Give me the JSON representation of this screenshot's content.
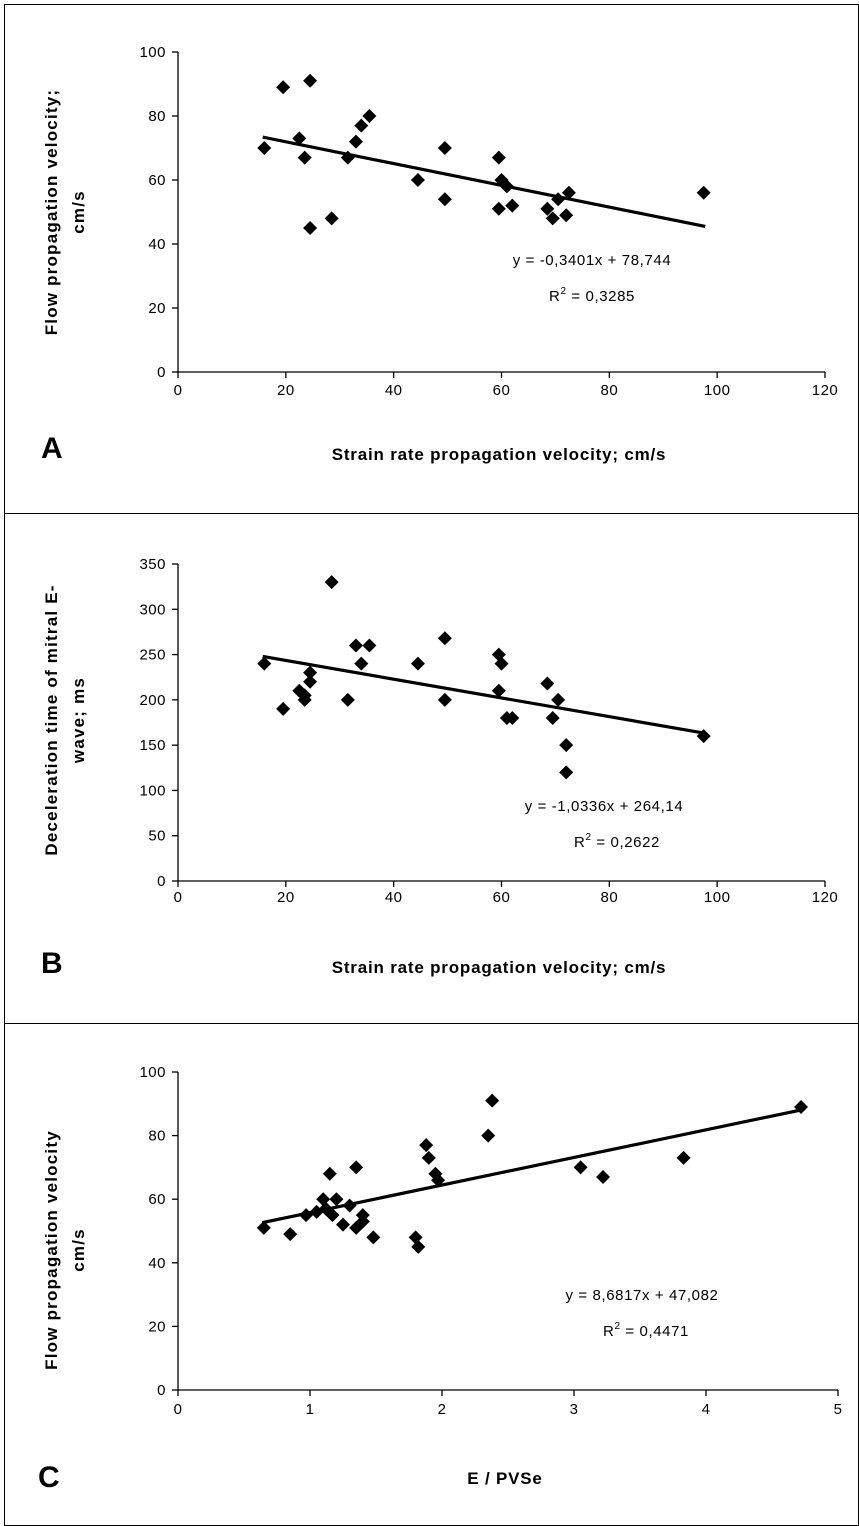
{
  "chart_data": [
    {
      "type": "scatter",
      "panel_label": "A",
      "ylabel_lines": [
        "Flow propagation velocity;",
        "cm/s"
      ],
      "xlabel": "Strain rate propagation velocity; cm/s",
      "xlim": [
        0,
        120
      ],
      "ylim": [
        0,
        100
      ],
      "xticks": [
        "0",
        "20",
        "40",
        "60",
        "80",
        "100",
        "120"
      ],
      "yticks": [
        "0",
        "20",
        "40",
        "60",
        "80",
        "100"
      ],
      "grid": false,
      "trendline": {
        "slope": -0.3401,
        "intercept": 78.744,
        "x_range": [
          16,
          97.5
        ]
      },
      "equation": "y = -0,3401x + 78,744",
      "r2_prefix": "R",
      "r2_sup": "2",
      "r2_value": " = 0,3285",
      "points": [
        {
          "x": 16,
          "y": 70
        },
        {
          "x": 19.5,
          "y": 89
        },
        {
          "x": 22.5,
          "y": 73
        },
        {
          "x": 23.5,
          "y": 67
        },
        {
          "x": 24.5,
          "y": 91
        },
        {
          "x": 24.5,
          "y": 45
        },
        {
          "x": 28.5,
          "y": 48
        },
        {
          "x": 31.5,
          "y": 67
        },
        {
          "x": 33,
          "y": 72
        },
        {
          "x": 34,
          "y": 77
        },
        {
          "x": 35.5,
          "y": 80
        },
        {
          "x": 44.5,
          "y": 60
        },
        {
          "x": 49.5,
          "y": 70
        },
        {
          "x": 49.5,
          "y": 54
        },
        {
          "x": 59.5,
          "y": 67
        },
        {
          "x": 59.5,
          "y": 51
        },
        {
          "x": 60,
          "y": 60
        },
        {
          "x": 61,
          "y": 58
        },
        {
          "x": 62,
          "y": 52
        },
        {
          "x": 68.5,
          "y": 51
        },
        {
          "x": 69.5,
          "y": 48
        },
        {
          "x": 70.5,
          "y": 54
        },
        {
          "x": 72,
          "y": 49
        },
        {
          "x": 72.5,
          "y": 56
        },
        {
          "x": 97.5,
          "y": 56
        }
      ]
    },
    {
      "type": "scatter",
      "panel_label": "B",
      "ylabel_lines": [
        "Deceleration time of mitral E-",
        "wave; ms"
      ],
      "xlabel": "Strain rate propagation velocity; cm/s",
      "xlim": [
        0,
        120
      ],
      "ylim": [
        0,
        350
      ],
      "xticks": [
        "0",
        "20",
        "40",
        "60",
        "80",
        "100",
        "120"
      ],
      "yticks": [
        "0",
        "50",
        "100",
        "150",
        "200",
        "250",
        "300",
        "350"
      ],
      "grid": false,
      "trendline": {
        "slope": -1.0336,
        "intercept": 264.14,
        "x_range": [
          16,
          97.5
        ]
      },
      "equation": "y = -1,0336x + 264,14",
      "r2_prefix": "R",
      "r2_sup": "2",
      "r2_value": " = 0,2622",
      "points": [
        {
          "x": 16,
          "y": 240
        },
        {
          "x": 19.5,
          "y": 190
        },
        {
          "x": 22.5,
          "y": 210
        },
        {
          "x": 23.5,
          "y": 200
        },
        {
          "x": 23.5,
          "y": 205
        },
        {
          "x": 24.5,
          "y": 220
        },
        {
          "x": 24.5,
          "y": 230
        },
        {
          "x": 28.5,
          "y": 330
        },
        {
          "x": 31.5,
          "y": 200
        },
        {
          "x": 33,
          "y": 260
        },
        {
          "x": 34,
          "y": 240
        },
        {
          "x": 35.5,
          "y": 260
        },
        {
          "x": 44.5,
          "y": 240
        },
        {
          "x": 49.5,
          "y": 268
        },
        {
          "x": 49.5,
          "y": 200
        },
        {
          "x": 59.5,
          "y": 250
        },
        {
          "x": 59.5,
          "y": 210
        },
        {
          "x": 60,
          "y": 240
        },
        {
          "x": 61,
          "y": 180
        },
        {
          "x": 62,
          "y": 180
        },
        {
          "x": 68.5,
          "y": 218
        },
        {
          "x": 69.5,
          "y": 180
        },
        {
          "x": 70.5,
          "y": 200
        },
        {
          "x": 72,
          "y": 150
        },
        {
          "x": 72,
          "y": 120
        },
        {
          "x": 97.5,
          "y": 160
        }
      ]
    },
    {
      "type": "scatter",
      "panel_label": "C",
      "ylabel_lines": [
        "Flow propagation velocity",
        "cm/s"
      ],
      "xlabel": "E / PVSe",
      "xlim": [
        0,
        5
      ],
      "ylim": [
        0,
        100
      ],
      "xticks": [
        "0",
        "1",
        "2",
        "3",
        "4",
        "5"
      ],
      "yticks": [
        "0",
        "20",
        "40",
        "60",
        "80",
        "100"
      ],
      "grid": false,
      "trendline": {
        "slope": 8.6817,
        "intercept": 47.082,
        "x_range": [
          0.65,
          4.72
        ]
      },
      "equation": "y = 8,6817x + 47,082",
      "r2_prefix": "R",
      "r2_sup": "2",
      "r2_value": " = 0,4471",
      "points": [
        {
          "x": 0.65,
          "y": 51
        },
        {
          "x": 0.85,
          "y": 49
        },
        {
          "x": 0.97,
          "y": 55
        },
        {
          "x": 1.05,
          "y": 56
        },
        {
          "x": 1.1,
          "y": 60
        },
        {
          "x": 1.12,
          "y": 57
        },
        {
          "x": 1.15,
          "y": 68
        },
        {
          "x": 1.17,
          "y": 55
        },
        {
          "x": 1.2,
          "y": 60
        },
        {
          "x": 1.25,
          "y": 52
        },
        {
          "x": 1.3,
          "y": 58
        },
        {
          "x": 1.35,
          "y": 70
        },
        {
          "x": 1.35,
          "y": 51
        },
        {
          "x": 1.4,
          "y": 55
        },
        {
          "x": 1.4,
          "y": 53
        },
        {
          "x": 1.48,
          "y": 48
        },
        {
          "x": 1.8,
          "y": 48
        },
        {
          "x": 1.82,
          "y": 45
        },
        {
          "x": 1.88,
          "y": 77
        },
        {
          "x": 1.9,
          "y": 73
        },
        {
          "x": 1.95,
          "y": 68
        },
        {
          "x": 1.97,
          "y": 66
        },
        {
          "x": 2.35,
          "y": 80
        },
        {
          "x": 2.38,
          "y": 91
        },
        {
          "x": 3.05,
          "y": 70
        },
        {
          "x": 3.22,
          "y": 67
        },
        {
          "x": 3.83,
          "y": 73
        },
        {
          "x": 4.72,
          "y": 89
        }
      ]
    }
  ]
}
